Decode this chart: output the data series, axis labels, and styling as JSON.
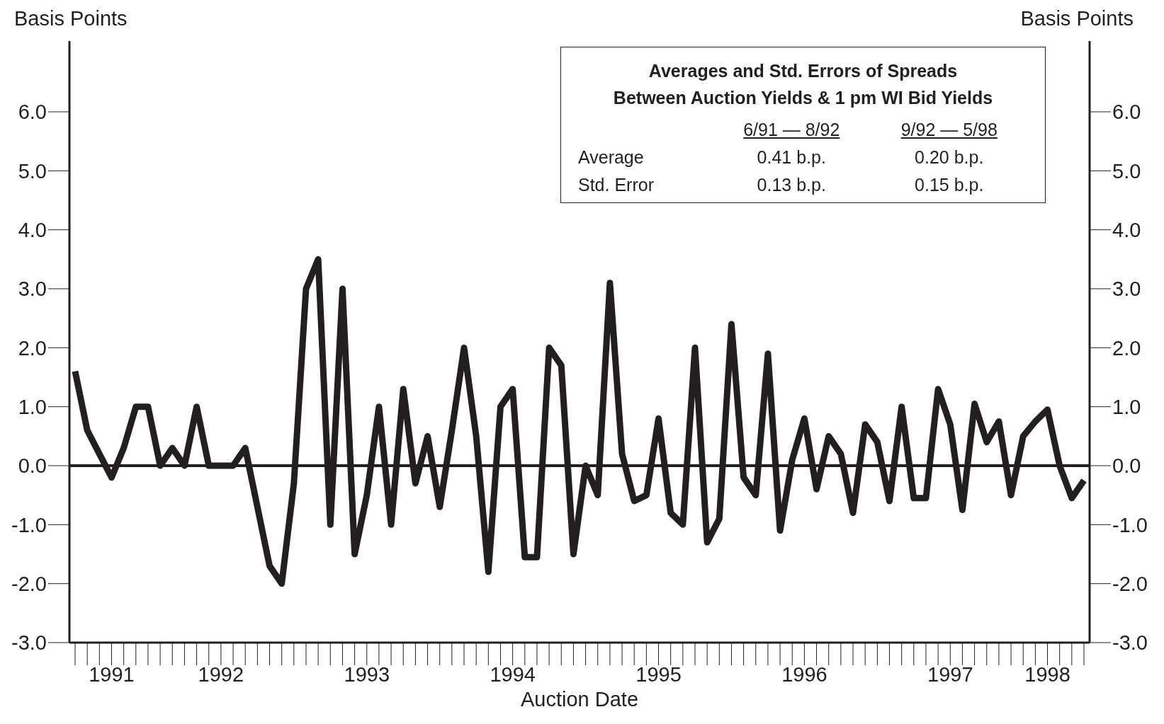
{
  "chart_data": {
    "type": "line",
    "ylabel": "Basis Points",
    "y2label": "Basis Points",
    "xlabel": "Auction Date",
    "categories": [
      null,
      null,
      null,
      "1991",
      null,
      null,
      null,
      null,
      null,
      null,
      null,
      null,
      "1992",
      null,
      null,
      null,
      null,
      null,
      null,
      null,
      null,
      null,
      null,
      null,
      "1993",
      null,
      null,
      null,
      null,
      null,
      null,
      null,
      null,
      null,
      null,
      null,
      "1994",
      null,
      null,
      null,
      null,
      null,
      null,
      null,
      null,
      null,
      null,
      null,
      "1995",
      null,
      null,
      null,
      null,
      null,
      null,
      null,
      null,
      null,
      null,
      null,
      "1996",
      null,
      null,
      null,
      null,
      null,
      null,
      null,
      null,
      null,
      null,
      null,
      "1997",
      null,
      null,
      null,
      null,
      null,
      null,
      null,
      "1998",
      null,
      null,
      null
    ],
    "series": [
      {
        "color": "#231f20",
        "values": [
          1.6,
          0.6,
          0.2,
          -0.2,
          0.3,
          1.0,
          1.0,
          0.0,
          0.3,
          0.0,
          1.0,
          0.0,
          0.0,
          0.0,
          0.3,
          -0.7,
          -1.7,
          -2.0,
          -0.3,
          3.0,
          3.5,
          -1.0,
          3.0,
          -1.5,
          -0.5,
          1.0,
          -1.0,
          1.3,
          -0.3,
          0.5,
          -0.7,
          0.6,
          2.0,
          0.5,
          -1.8,
          1.0,
          1.3,
          -1.55,
          -1.55,
          2.0,
          1.7,
          -1.5,
          0.0,
          -0.5,
          3.1,
          0.2,
          -0.6,
          -0.5,
          0.8,
          -0.8,
          -1.0,
          2.0,
          -1.3,
          -0.9,
          2.4,
          -0.2,
          -0.5,
          1.9,
          -1.1,
          0.1,
          0.8,
          -0.4,
          0.5,
          0.2,
          -0.8,
          0.7,
          0.4,
          -0.6,
          1.0,
          -0.55,
          -0.55,
          1.3,
          0.7,
          -0.75,
          1.05,
          0.4,
          0.75,
          -0.5,
          0.5,
          0.75,
          0.95,
          0.0,
          -0.55,
          -0.25
        ]
      }
    ],
    "ylim": [
      -3,
      7.2
    ],
    "yticks": [
      {
        "value": -3,
        "label": "-3.0"
      },
      {
        "value": -2,
        "label": "-2.0"
      },
      {
        "value": -1,
        "label": "-1.0"
      },
      {
        "value": 0,
        "label": "0.0"
      },
      {
        "value": 1,
        "label": "1.0"
      },
      {
        "value": 2,
        "label": "2.0"
      },
      {
        "value": 3,
        "label": "3.0"
      },
      {
        "value": 4,
        "label": "4.0"
      },
      {
        "value": 5,
        "label": "5.0"
      },
      {
        "value": 6,
        "label": "6.0"
      }
    ],
    "y2lim": [
      -3,
      7.2
    ],
    "y2ticks": [
      {
        "value": -3,
        "label": "-3.0"
      },
      {
        "value": -2,
        "label": "-2.0"
      },
      {
        "value": -1,
        "label": "-1.0"
      },
      {
        "value": 0,
        "label": "0.0"
      },
      {
        "value": 1,
        "label": "1.0"
      },
      {
        "value": 2,
        "label": "2.0"
      },
      {
        "value": 3,
        "label": "3.0"
      },
      {
        "value": 4,
        "label": "4.0"
      },
      {
        "value": 5,
        "label": "5.0"
      },
      {
        "value": 6,
        "label": "6.0"
      }
    ],
    "ref_lines": [
      {
        "axis": "y",
        "value": 0,
        "color": "#231f20"
      }
    ],
    "annotations": [
      "Averages and Std. Errors of Spreads",
      "Between Auction Yields & 1 pm WI Bid Yields",
      "6/91 — 8/92",
      "9/92 — 5/98",
      "Average",
      "0.41 b.p.",
      "0.20 b.p.",
      "Std. Error",
      "0.13 b.p.",
      "0.15 b.p."
    ],
    "grid": false,
    "legend": false,
    "marker": "none",
    "line_style": "solid"
  }
}
